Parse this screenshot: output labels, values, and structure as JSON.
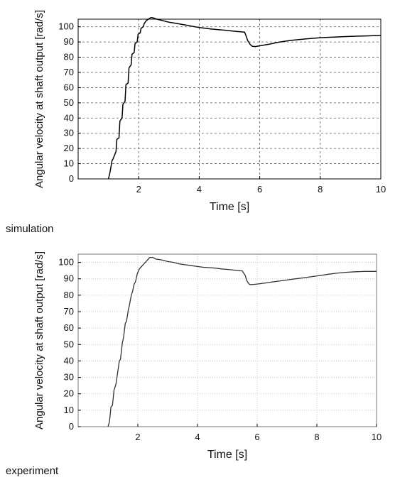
{
  "chart_data": [
    {
      "type": "line",
      "xlabel": "Time [s]",
      "ylabel": "Angular velocity at shaft output [rad/s]",
      "xlim": [
        0,
        10
      ],
      "ylim": [
        0,
        105
      ],
      "xticks": [
        2,
        4,
        6,
        8,
        10
      ],
      "yticks": [
        0,
        10,
        20,
        30,
        40,
        50,
        60,
        70,
        80,
        90,
        100
      ],
      "grid": "dashed",
      "caption": "simulation",
      "series": [
        {
          "x": [
            1.0,
            1.05,
            1.12,
            1.15,
            1.25,
            1.28,
            1.35,
            1.38,
            1.45,
            1.48,
            1.55,
            1.58,
            1.65,
            1.68,
            1.75,
            1.78,
            1.85,
            1.88,
            1.95,
            1.98,
            2.05,
            2.08,
            2.15,
            2.18,
            2.25,
            2.32,
            2.4,
            2.45,
            2.6,
            2.8,
            3.0,
            3.3,
            3.6,
            4.0,
            4.4,
            4.8,
            5.2,
            5.5,
            5.55,
            5.6,
            5.68,
            5.75,
            5.85,
            6.0,
            6.3,
            6.6,
            7.0,
            7.5,
            8.0,
            8.5,
            9.0,
            9.5,
            10.0
          ],
          "y": [
            0,
            4,
            12,
            13,
            18,
            26,
            27,
            38,
            40,
            49,
            51,
            62,
            63,
            73,
            75,
            82,
            83,
            89,
            90,
            95,
            96,
            99,
            100,
            102,
            104,
            105,
            106,
            106,
            105,
            104,
            103,
            102,
            101,
            99.5,
            98.5,
            97.8,
            97,
            96.5,
            94,
            91,
            88.5,
            87.2,
            87,
            87.5,
            88.5,
            89.8,
            91,
            92,
            92.8,
            93.3,
            93.7,
            94,
            94.3
          ]
        }
      ]
    },
    {
      "type": "line",
      "xlabel": "Time [s]",
      "ylabel": "Angular velocity at shaft output [rad/s]",
      "xlim": [
        0,
        10
      ],
      "ylim": [
        0,
        105
      ],
      "xticks": [
        2,
        4,
        6,
        8,
        10
      ],
      "yticks": [
        0,
        10,
        20,
        30,
        40,
        50,
        60,
        70,
        80,
        90,
        100
      ],
      "grid": "dotted",
      "caption": "experiment",
      "series": [
        {
          "x": [
            1.0,
            1.05,
            1.1,
            1.15,
            1.2,
            1.27,
            1.3,
            1.38,
            1.42,
            1.48,
            1.52,
            1.58,
            1.62,
            1.68,
            1.72,
            1.78,
            1.82,
            1.88,
            1.92,
            1.98,
            2.05,
            2.1,
            2.2,
            2.3,
            2.4,
            2.5,
            2.6,
            2.8,
            3.0,
            3.2,
            3.4,
            3.6,
            3.8,
            4.0,
            4.2,
            4.4,
            4.6,
            4.8,
            5.0,
            5.2,
            5.5,
            5.6,
            5.65,
            5.7,
            5.75,
            5.85,
            6.0,
            6.3,
            6.6,
            6.9,
            7.2,
            7.5,
            7.8,
            8.1,
            8.4,
            8.7,
            9.0,
            9.3,
            9.6,
            9.8,
            10.0
          ],
          "y": [
            0,
            3,
            12,
            13,
            22,
            26,
            30,
            40,
            41,
            51,
            54,
            63,
            64,
            71,
            74,
            80,
            82,
            87,
            88,
            93,
            96,
            97,
            99,
            101,
            103,
            103,
            102,
            101.5,
            100.5,
            100,
            99,
            98.5,
            98,
            97.5,
            97,
            96.8,
            96.5,
            96,
            95.7,
            95.3,
            94.8,
            92,
            89,
            87.5,
            86.5,
            86.5,
            86.8,
            87.5,
            88.3,
            89,
            89.8,
            90.5,
            91.2,
            92,
            92.8,
            93.5,
            94,
            94.3,
            94.5,
            94.5,
            94.5
          ]
        }
      ]
    }
  ]
}
